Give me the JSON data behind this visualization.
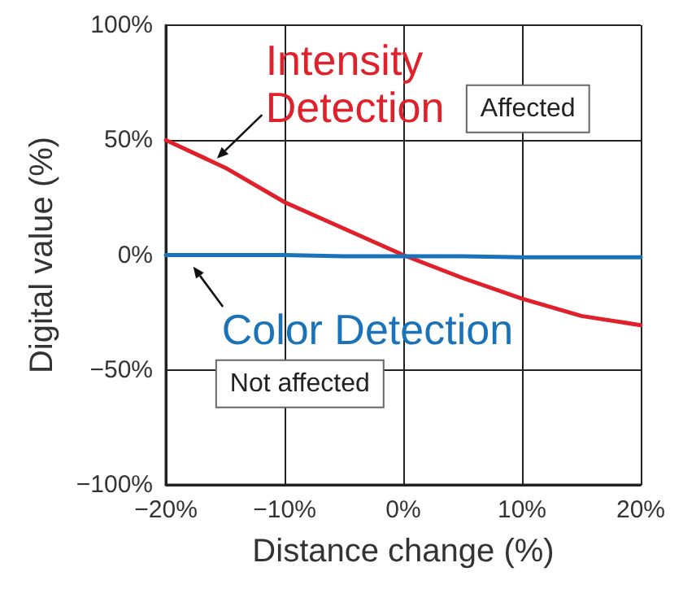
{
  "chart_data": {
    "type": "line",
    "xlabel": "Distance change (%)",
    "ylabel": "Digital value (%)",
    "x": [
      -20,
      -15,
      -10,
      -5,
      0,
      5,
      10,
      15,
      20
    ],
    "series": [
      {
        "name": "Intensity Detection",
        "color": "#e0202a",
        "values": [
          50,
          38,
          23,
          11.5,
          0,
          -10,
          -19,
          -26.5,
          -30.5
        ]
      },
      {
        "name": "Color Detection",
        "color": "#1a73b8",
        "values": [
          0,
          0,
          0,
          -0.5,
          -0.5,
          -0.5,
          -1,
          -1,
          -1
        ]
      }
    ],
    "xlim": [
      -20,
      20
    ],
    "ylim": [
      -100,
      100
    ],
    "xticks": [
      {
        "value": -20,
        "label": "−20%"
      },
      {
        "value": -10,
        "label": "−10%"
      },
      {
        "value": 0,
        "label": "0%"
      },
      {
        "value": 10,
        "label": "10%"
      },
      {
        "value": 20,
        "label": "20%"
      }
    ],
    "yticks": [
      {
        "value": -100,
        "label": "−100%"
      },
      {
        "value": -50,
        "label": "−50%"
      },
      {
        "value": 0,
        "label": "0%"
      },
      {
        "value": 50,
        "label": "50%"
      },
      {
        "value": 100,
        "label": "100%"
      }
    ],
    "annotations": [
      "Affected",
      "Not affected"
    ],
    "grid": true,
    "legend": false,
    "marker": "none",
    "line_style": "solid"
  }
}
